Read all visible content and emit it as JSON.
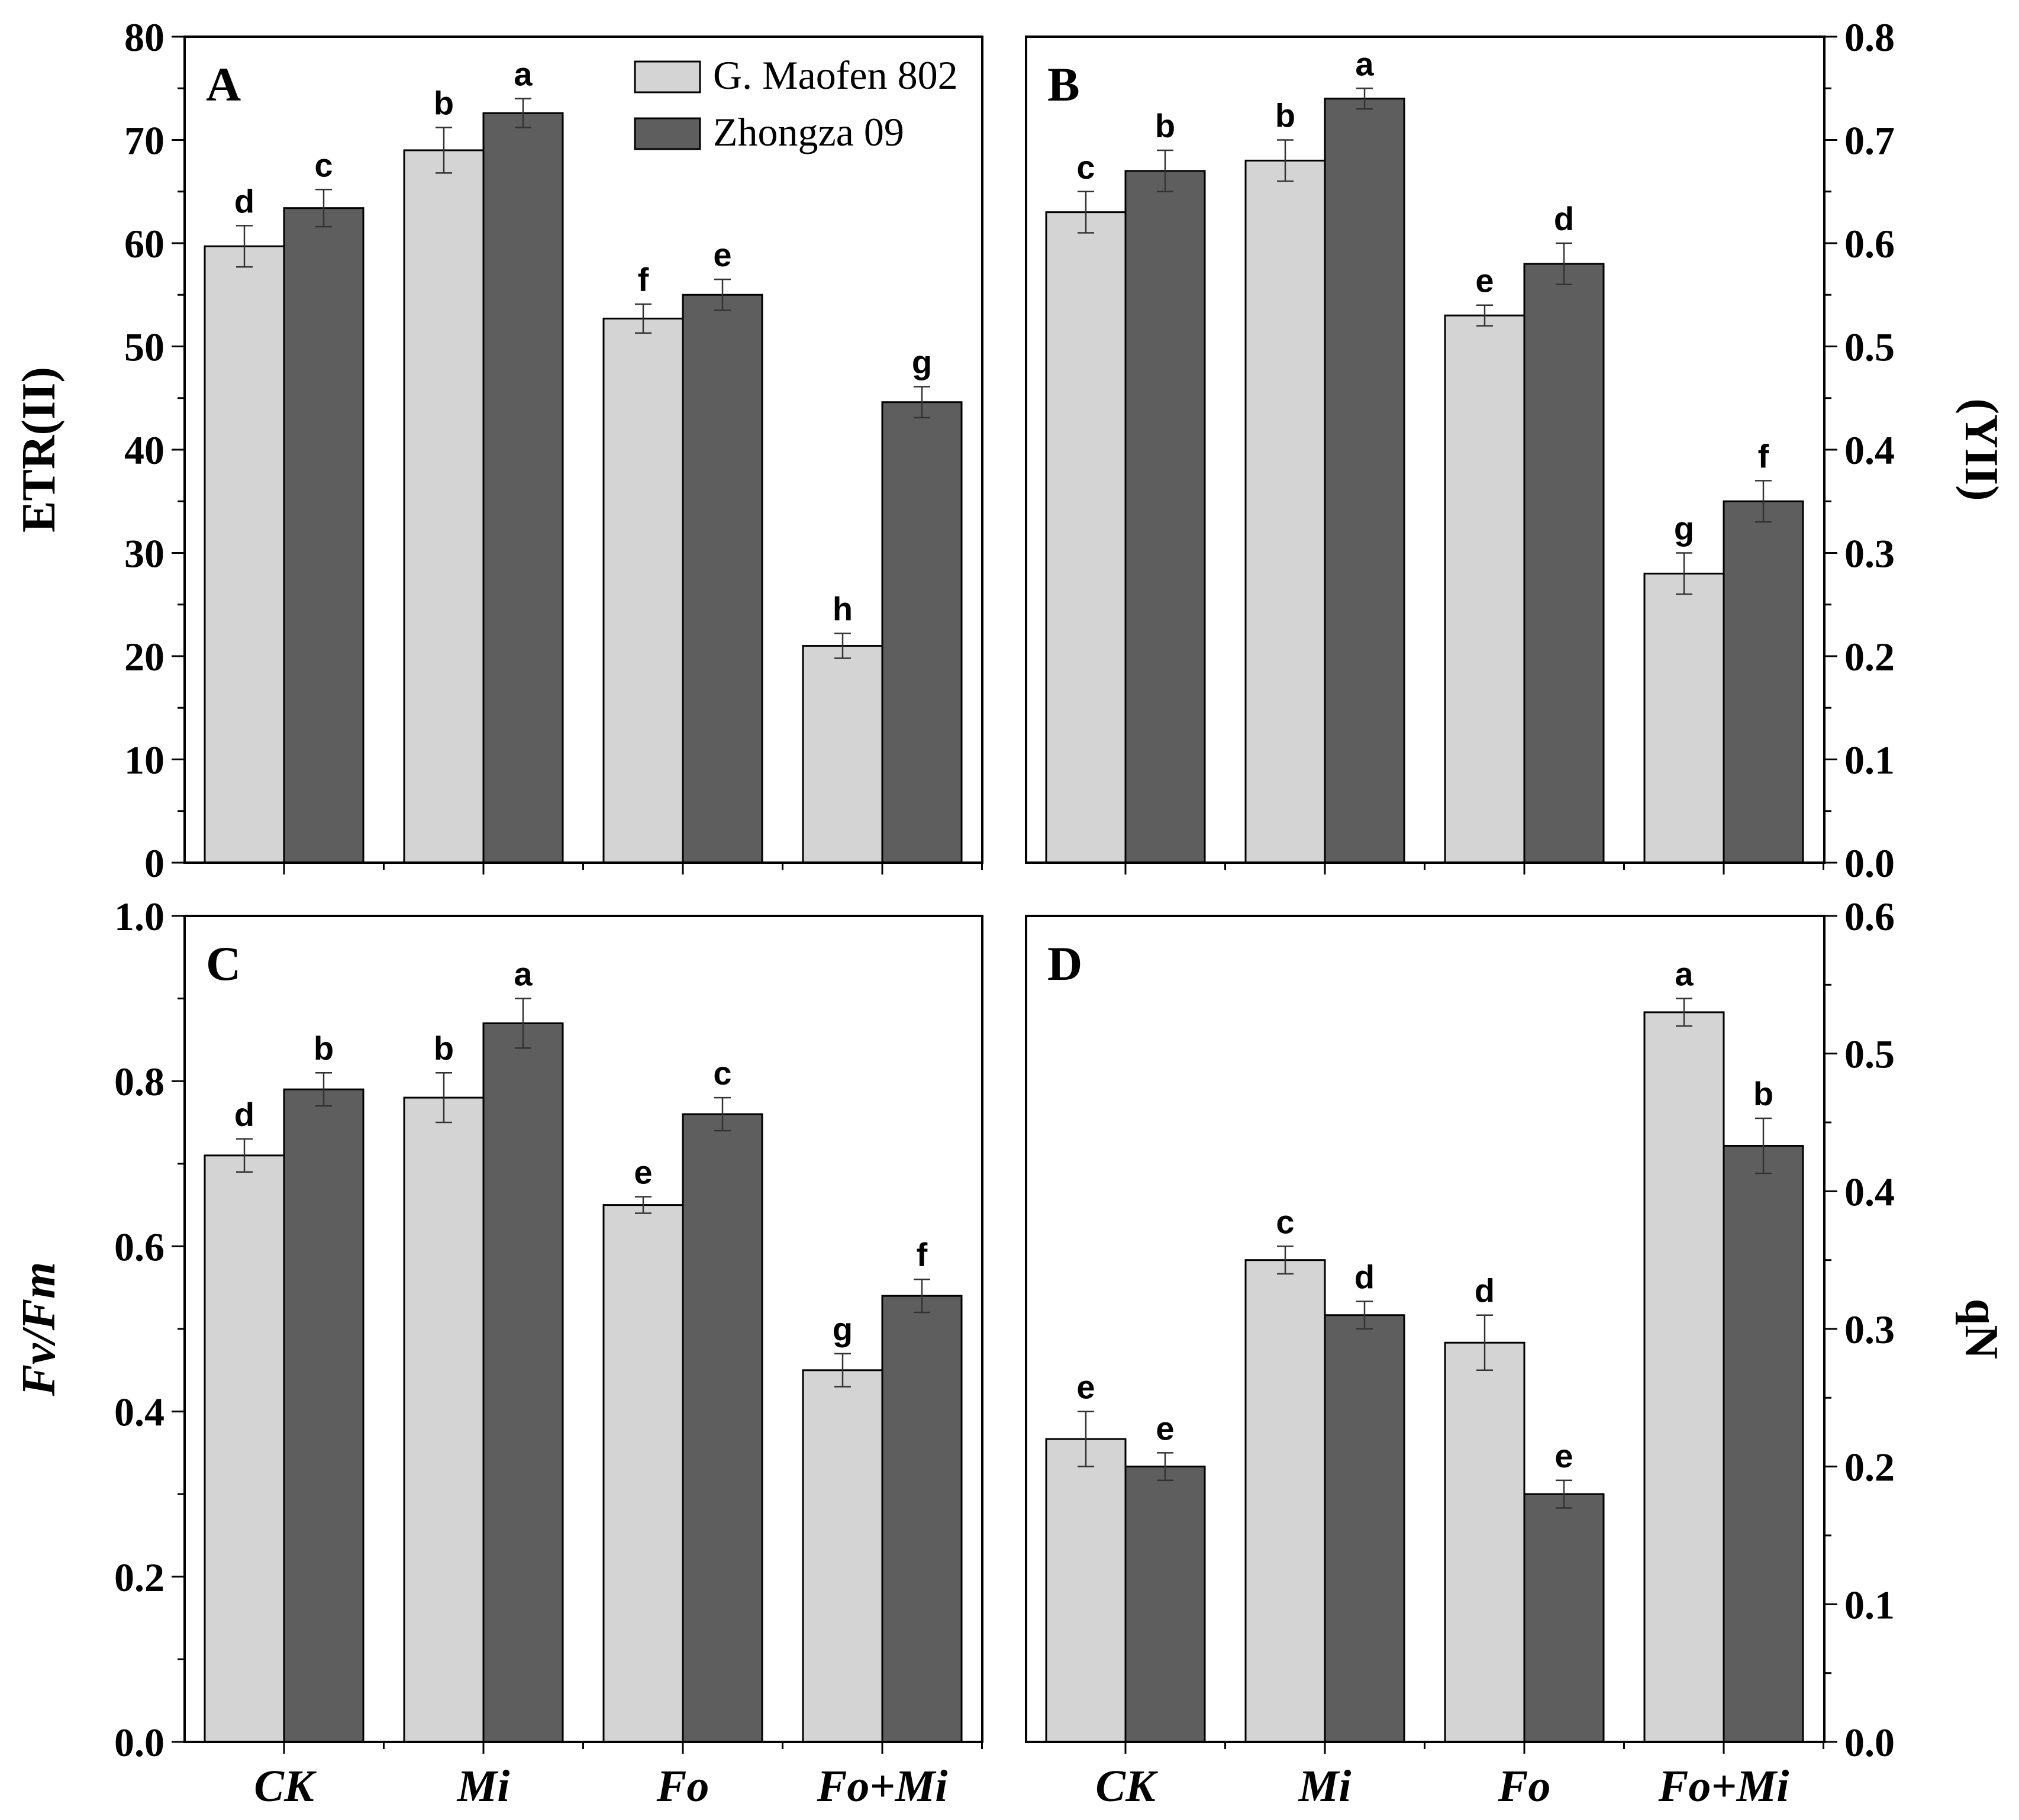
{
  "colors": {
    "series1": "#d4d4d4",
    "series2": "#5e5e5e",
    "axis": "#000000",
    "background": "#ffffff"
  },
  "legend": [
    {
      "name": "G. Maofen 802",
      "color": "#d4d4d4"
    },
    {
      "name": "Zhongza 09",
      "color": "#5e5e5e"
    }
  ],
  "chart_data": [
    {
      "type": "bar",
      "panel": "A",
      "categories": [
        "CK",
        "Mi",
        "Fo",
        "Fo+Mi"
      ],
      "series": [
        {
          "name": "G. Maofen 802",
          "values": [
            59.7,
            69.0,
            52.7,
            21.0
          ],
          "errors": [
            2.0,
            2.2,
            1.4,
            1.2
          ],
          "labels": [
            "d",
            "b",
            "f",
            "h"
          ]
        },
        {
          "name": "Zhongza 09",
          "values": [
            63.4,
            72.6,
            55.0,
            44.6
          ],
          "errors": [
            1.8,
            1.4,
            1.5,
            1.5
          ],
          "labels": [
            "c",
            "a",
            "e",
            "g"
          ]
        }
      ],
      "ylabel": "ETR(II)",
      "ylabel_side": "left",
      "ylim": [
        0,
        80
      ],
      "yticks": [
        0,
        10,
        20,
        30,
        40,
        50,
        60,
        70,
        80
      ],
      "ytick_labels": [
        "0",
        "10",
        "20",
        "30",
        "40",
        "50",
        "60",
        "70",
        "80"
      ],
      "show_xticklabels": false,
      "legend_position": "top-right"
    },
    {
      "type": "bar",
      "panel": "B",
      "categories": [
        "CK",
        "Mi",
        "Fo",
        "Fo+Mi"
      ],
      "series": [
        {
          "name": "G. Maofen 802",
          "values": [
            0.63,
            0.68,
            0.53,
            0.28
          ],
          "errors": [
            0.02,
            0.02,
            0.01,
            0.02
          ],
          "labels": [
            "c",
            "b",
            "e",
            "g"
          ]
        },
        {
          "name": "Zhongza 09",
          "values": [
            0.67,
            0.74,
            0.58,
            0.35
          ],
          "errors": [
            0.02,
            0.01,
            0.02,
            0.02
          ],
          "labels": [
            "b",
            "a",
            "d",
            "f"
          ]
        }
      ],
      "ylabel": "(YII)",
      "ylabel_side": "right",
      "ylim": [
        0,
        0.8
      ],
      "yticks": [
        0,
        0.1,
        0.2,
        0.3,
        0.4,
        0.5,
        0.6,
        0.7,
        0.8
      ],
      "ytick_labels": [
        "0.0",
        "0.1",
        "0.2",
        "0.3",
        "0.4",
        "0.5",
        "0.6",
        "0.7",
        "0.8"
      ],
      "show_xticklabels": false
    },
    {
      "type": "bar",
      "panel": "C",
      "categories": [
        "CK",
        "Mi",
        "Fo",
        "Fo+Mi"
      ],
      "series": [
        {
          "name": "G. Maofen 802",
          "values": [
            0.71,
            0.78,
            0.65,
            0.45
          ],
          "errors": [
            0.02,
            0.03,
            0.01,
            0.02
          ],
          "labels": [
            "d",
            "b",
            "e",
            "g"
          ]
        },
        {
          "name": "Zhongza 09",
          "values": [
            0.79,
            0.87,
            0.76,
            0.54
          ],
          "errors": [
            0.02,
            0.03,
            0.02,
            0.02
          ],
          "labels": [
            "b",
            "a",
            "c",
            "f"
          ]
        }
      ],
      "ylabel": "Fv/Fm",
      "ylabel_italic": true,
      "ylabel_side": "left",
      "ylim": [
        0,
        1.0
      ],
      "yticks": [
        0,
        0.2,
        0.4,
        0.6,
        0.8,
        1.0
      ],
      "ytick_labels": [
        "0.0",
        "0.2",
        "0.4",
        "0.6",
        "0.8",
        "1.0"
      ],
      "show_xticklabels": true
    },
    {
      "type": "bar",
      "panel": "D",
      "categories": [
        "CK",
        "Mi",
        "Fo",
        "Fo+Mi"
      ],
      "series": [
        {
          "name": "G. Maofen 802",
          "values": [
            0.22,
            0.35,
            0.29,
            0.53
          ],
          "errors": [
            0.02,
            0.01,
            0.02,
            0.01
          ],
          "labels": [
            "e",
            "c",
            "d",
            "a"
          ]
        },
        {
          "name": "Zhongza 09",
          "values": [
            0.2,
            0.31,
            0.18,
            0.433
          ],
          "errors": [
            0.01,
            0.01,
            0.01,
            0.02
          ],
          "labels": [
            "e",
            "d",
            "e",
            "b"
          ]
        }
      ],
      "ylabel": "qN",
      "ylabel_side": "right",
      "ylim": [
        0,
        0.6
      ],
      "yticks": [
        0,
        0.1,
        0.2,
        0.3,
        0.4,
        0.5,
        0.6
      ],
      "ytick_labels": [
        "0.0",
        "0.1",
        "0.2",
        "0.3",
        "0.4",
        "0.5",
        "0.6"
      ],
      "show_xticklabels": true
    }
  ]
}
